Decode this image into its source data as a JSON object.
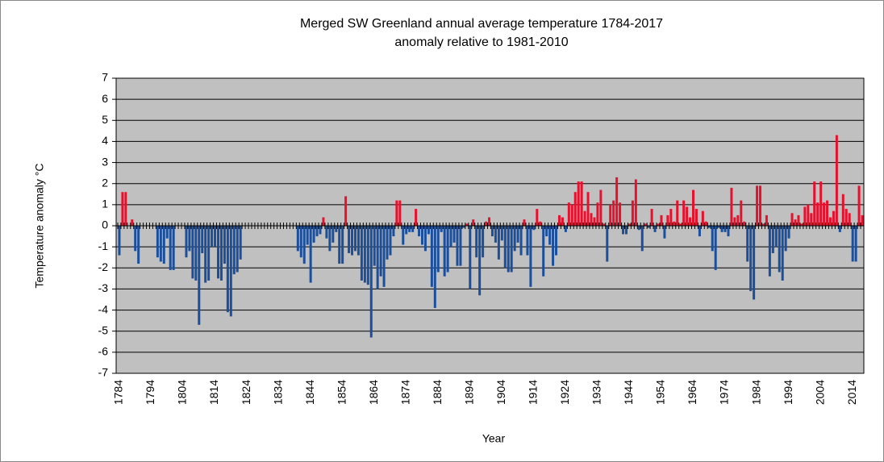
{
  "chart_data": {
    "type": "bar",
    "title": "Merged SW Greenland annual average  temperature 1784-2017",
    "subtitle": "anomaly relative to 1981-2010",
    "x_label": "Year",
    "y_label": "Temperature anomaly °C",
    "x": [
      1784,
      1785,
      1786,
      1787,
      1788,
      1789,
      1790,
      1791,
      1792,
      1793,
      1794,
      1795,
      1796,
      1797,
      1798,
      1799,
      1800,
      1801,
      1802,
      1803,
      1804,
      1805,
      1806,
      1807,
      1808,
      1809,
      1810,
      1811,
      1812,
      1813,
      1814,
      1815,
      1816,
      1817,
      1818,
      1819,
      1820,
      1821,
      1822,
      1823,
      1824,
      1825,
      1826,
      1827,
      1828,
      1829,
      1830,
      1831,
      1832,
      1833,
      1834,
      1835,
      1836,
      1837,
      1838,
      1839,
      1840,
      1841,
      1842,
      1843,
      1844,
      1845,
      1846,
      1847,
      1848,
      1849,
      1850,
      1851,
      1852,
      1853,
      1854,
      1855,
      1856,
      1857,
      1858,
      1859,
      1860,
      1861,
      1862,
      1863,
      1864,
      1865,
      1866,
      1867,
      1868,
      1869,
      1870,
      1871,
      1872,
      1873,
      1874,
      1875,
      1876,
      1877,
      1878,
      1879,
      1880,
      1881,
      1882,
      1883,
      1884,
      1885,
      1886,
      1887,
      1888,
      1889,
      1890,
      1891,
      1892,
      1893,
      1894,
      1895,
      1896,
      1897,
      1898,
      1899,
      1900,
      1901,
      1902,
      1903,
      1904,
      1905,
      1906,
      1907,
      1908,
      1909,
      1910,
      1911,
      1912,
      1913,
      1914,
      1915,
      1916,
      1917,
      1918,
      1919,
      1920,
      1921,
      1922,
      1923,
      1924,
      1925,
      1926,
      1927,
      1928,
      1929,
      1930,
      1931,
      1932,
      1933,
      1934,
      1935,
      1936,
      1937,
      1938,
      1939,
      1940,
      1941,
      1942,
      1943,
      1944,
      1945,
      1946,
      1947,
      1948,
      1949,
      1950,
      1951,
      1952,
      1953,
      1954,
      1955,
      1956,
      1957,
      1958,
      1959,
      1960,
      1961,
      1962,
      1963,
      1964,
      1965,
      1966,
      1967,
      1968,
      1969,
      1970,
      1971,
      1972,
      1973,
      1974,
      1975,
      1976,
      1977,
      1978,
      1979,
      1980,
      1981,
      1982,
      1983,
      1984,
      1985,
      1986,
      1987,
      1988,
      1989,
      1990,
      1991,
      1992,
      1993,
      1994,
      1995,
      1996,
      1997,
      1998,
      1999,
      2000,
      2001,
      2002,
      2003,
      2004,
      2005,
      2006,
      2007,
      2008,
      2009,
      2010,
      2011,
      2012,
      2013,
      2014,
      2015,
      2016,
      2017
    ],
    "values": [
      -1.4,
      1.6,
      1.6,
      null,
      0.3,
      -1.2,
      -1.8,
      null,
      null,
      null,
      null,
      null,
      -1.5,
      -1.7,
      -1.8,
      -0.6,
      -2.1,
      -2.1,
      null,
      null,
      null,
      -1.5,
      -1.2,
      -2.5,
      -2.6,
      -4.7,
      -1.3,
      -2.7,
      -2.6,
      -1.0,
      -1.0,
      -2.5,
      -2.6,
      -1.8,
      -4.1,
      -4.3,
      -2.3,
      -2.2,
      -1.6,
      null,
      null,
      null,
      null,
      null,
      null,
      null,
      null,
      null,
      null,
      null,
      null,
      null,
      null,
      null,
      null,
      null,
      -1.2,
      -1.5,
      -1.8,
      -0.9,
      -2.7,
      -0.8,
      -0.5,
      -0.4,
      0.4,
      -0.6,
      -1.2,
      -0.8,
      -0.3,
      -1.8,
      -1.8,
      1.4,
      -1.3,
      -1.4,
      -1.2,
      -1.4,
      -2.6,
      -2.7,
      -2.8,
      -5.3,
      -1.9,
      -3.0,
      -2.4,
      -2.9,
      -1.6,
      -1.4,
      -0.5,
      1.2,
      1.2,
      -0.9,
      -0.4,
      -0.3,
      -0.3,
      0.8,
      -0.5,
      -0.9,
      -1.2,
      -0.4,
      -2.9,
      -3.9,
      -2.2,
      -0.3,
      -2.4,
      -2.2,
      -1.0,
      -0.8,
      -1.9,
      -1.9,
      -0.1,
      0.1,
      -3.0,
      0.3,
      -1.5,
      -3.3,
      -1.5,
      0.2,
      0.4,
      -0.5,
      -0.8,
      -1.6,
      -0.7,
      -2.0,
      -2.2,
      -2.2,
      -1.2,
      -0.8,
      -1.4,
      0.3,
      -1.4,
      -2.9,
      -0.2,
      0.8,
      0.2,
      -2.4,
      -0.5,
      -0.9,
      -1.9,
      -1.4,
      0.5,
      0.4,
      -0.3,
      1.1,
      1.0,
      1.6,
      2.1,
      2.1,
      0.7,
      1.6,
      0.6,
      0.4,
      1.1,
      1.7,
      0.1,
      -1.7,
      1.0,
      1.2,
      2.3,
      1.1,
      -0.4,
      -0.4,
      0.1,
      1.2,
      2.2,
      -0.2,
      -1.2,
      0.1,
      -0.1,
      0.8,
      -0.3,
      0.1,
      0.5,
      -0.6,
      0.5,
      0.8,
      0.2,
      1.2,
      0.1,
      1.2,
      0.9,
      0.4,
      1.7,
      0.8,
      -0.5,
      0.7,
      0.2,
      -0.1,
      -1.2,
      -2.1,
      -0.1,
      -0.3,
      -0.3,
      -0.5,
      1.8,
      0.4,
      0.5,
      1.2,
      0.2,
      -1.7,
      -3.1,
      -3.5,
      1.9,
      1.9,
      0.1,
      0.5,
      -2.4,
      -1.3,
      -1.0,
      -2.2,
      -2.6,
      -1.2,
      -0.6,
      0.6,
      0.3,
      0.5,
      0.1,
      0.9,
      1.0,
      0.6,
      2.1,
      1.1,
      2.1,
      1.1,
      1.2,
      0.4,
      0.7,
      4.3,
      -0.3,
      1.5,
      0.8,
      0.6,
      -1.7,
      -1.7,
      1.9,
      0.5
    ],
    "positive_color": "#e8112d",
    "negative_color": "#1b4f9c",
    "xlim": [
      1783,
      2017.5
    ],
    "xticks": [
      1784,
      1794,
      1804,
      1814,
      1824,
      1834,
      1844,
      1854,
      1864,
      1874,
      1884,
      1894,
      1904,
      1914,
      1924,
      1934,
      1944,
      1954,
      1964,
      1974,
      1984,
      1994,
      2004,
      2014
    ],
    "ylim": [
      -7,
      7
    ],
    "yticks": [
      -7,
      -6,
      -5,
      -4,
      -3,
      -2,
      -1,
      0,
      1,
      2,
      3,
      4,
      5,
      6,
      7
    ],
    "grid": true
  }
}
